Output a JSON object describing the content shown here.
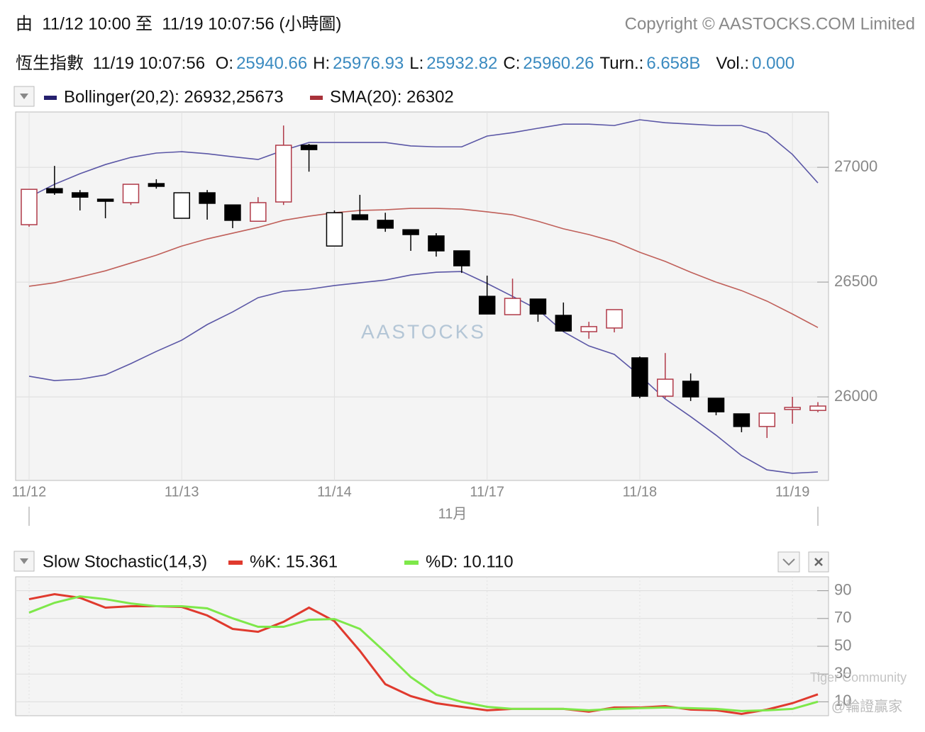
{
  "header": {
    "range": "由  11/12 10:00 至  11/19 10:07:56 (小時圖)",
    "copyright": "Copyright © AASTOCKS.COM Limited"
  },
  "quote": {
    "name": "恆生指數",
    "time": "11/19 10:07:56",
    "fields": [
      {
        "label": "O:",
        "value": "25940.66"
      },
      {
        "label": "H:",
        "value": "25976.93"
      },
      {
        "label": "L:",
        "value": "25932.82"
      },
      {
        "label": "C:",
        "value": "25960.26"
      },
      {
        "label": "Turn.:",
        "value": "6.658B"
      },
      {
        "label": "Vol.:",
        "value": "0.000"
      }
    ]
  },
  "watermarks": [
    "AASTOCKS",
    "Tiger Community",
    "@輪證贏家"
  ],
  "chart_data": [
    {
      "type": "candlestick",
      "legend": [
        {
          "label": "Bollinger(20,2): 26932,25673",
          "color": "#25206e"
        },
        {
          "label": "SMA(20): 26302",
          "color": "#a8323a"
        }
      ],
      "categories": [
        "11/12",
        null,
        null,
        null,
        null,
        null,
        "11/13",
        null,
        null,
        null,
        null,
        null,
        "11/14",
        null,
        null,
        null,
        null,
        null,
        "11/17",
        null,
        null,
        null,
        null,
        null,
        "11/18",
        null,
        null,
        null,
        null,
        null,
        "11/19",
        null
      ],
      "x_sublabel": "11月",
      "open": [
        26750,
        26907,
        26889,
        26861,
        26846,
        26929,
        26778,
        26889,
        26836,
        26765,
        26849,
        27096,
        26657,
        26793,
        26769,
        26728,
        26701,
        26636,
        26438,
        26358,
        26426,
        26355,
        26284,
        26300,
        26170,
        26003,
        26068,
        25994,
        25926,
        25871,
        25945,
        25941
      ],
      "high": [
        26904,
        27006,
        26901,
        26861,
        26926,
        26948,
        26889,
        26901,
        26836,
        26870,
        27182,
        27102,
        26812,
        26880,
        26802,
        26728,
        26713,
        26636,
        26528,
        26515,
        26426,
        26411,
        26327,
        26380,
        26176,
        26191,
        26102,
        25994,
        25926,
        25929,
        26000,
        25977
      ],
      "low": [
        26741,
        26880,
        26812,
        26778,
        26836,
        26907,
        26778,
        26772,
        26735,
        26765,
        26836,
        26981,
        26657,
        26772,
        26719,
        26636,
        26611,
        26540,
        26361,
        26358,
        26327,
        26284,
        26253,
        26281,
        25994,
        25994,
        25982,
        25920,
        25846,
        25821,
        25883,
        25933
      ],
      "close": [
        26904,
        26889,
        26870,
        26852,
        26926,
        26917,
        26889,
        26843,
        26769,
        26846,
        27096,
        27077,
        26802,
        26772,
        26735,
        26707,
        26636,
        26571,
        26361,
        26429,
        26361,
        26287,
        26306,
        26380,
        26003,
        26077,
        26000,
        25935,
        25871,
        25929,
        25954,
        25960
      ],
      "colors": [
        "#b03a48",
        "#000000",
        "#000000",
        "#000000",
        "#b03a48",
        "#000000",
        "#000000",
        "#000000",
        "#000000",
        "#b03a48",
        "#b03a48",
        "#000000",
        "#000000",
        "#000000",
        "#000000",
        "#000000",
        "#000000",
        "#000000",
        "#000000",
        "#b03a48",
        "#000000",
        "#000000",
        "#b03a48",
        "#b03a48",
        "#000000",
        "#b03a48",
        "#000000",
        "#000000",
        "#000000",
        "#b03a48",
        "#b03a48",
        "#b03a48"
      ],
      "lines": [
        {
          "color": "#5b57a6",
          "values": [
            26870,
            26926,
            26972,
            27012,
            27043,
            27062,
            27068,
            27059,
            27046,
            27034,
            27074,
            27108,
            27108,
            27108,
            27108,
            27093,
            27089,
            27089,
            27136,
            27151,
            27170,
            27188,
            27188,
            27182,
            27207,
            27194,
            27188,
            27182,
            27182,
            27148,
            27056,
            26932
          ]
        },
        {
          "color": "#5b57a6",
          "values": [
            26090,
            26071,
            26077,
            26096,
            26145,
            26198,
            26247,
            26315,
            26370,
            26432,
            26460,
            26469,
            26485,
            26497,
            26509,
            26531,
            26543,
            26546,
            26494,
            26438,
            26380,
            26284,
            26222,
            26185,
            26093,
            25991,
            25914,
            25833,
            25744,
            25682,
            25667,
            25673
          ]
        },
        {
          "color": "#c0605a",
          "values": [
            26482,
            26497,
            26522,
            26549,
            26583,
            26617,
            26657,
            26688,
            26713,
            26738,
            26769,
            26787,
            26802,
            26812,
            26815,
            26821,
            26821,
            26818,
            26806,
            26793,
            26765,
            26732,
            26707,
            26676,
            26630,
            26590,
            26543,
            26500,
            26463,
            26417,
            26361,
            26302
          ]
        }
      ],
      "ylim": [
        25636,
        27241
      ],
      "yticks": [
        26000,
        26500,
        27000
      ],
      "grid": true
    },
    {
      "type": "line",
      "title": "Slow Stochastic(14,3)",
      "series": [
        {
          "name": "%K: 15.361",
          "color": "#e03a2e",
          "values": [
            83.9,
            87.5,
            84.9,
            77.8,
            78.8,
            78.8,
            78.3,
            72.2,
            62.5,
            60.4,
            67.6,
            77.8,
            68.1,
            46.7,
            22.7,
            14.1,
            9.0,
            6.4,
            3.9,
            4.9,
            4.9,
            4.9,
            2.9,
            5.9,
            5.9,
            6.9,
            4.4,
            3.9,
            1.3,
            4.4,
            9.0,
            15.4
          ]
        },
        {
          "name": "%D: 10.110",
          "color": "#7ee84a",
          "values": [
            74.2,
            81.3,
            85.9,
            83.9,
            80.8,
            78.8,
            78.8,
            77.3,
            70.1,
            64.0,
            64.0,
            69.1,
            69.6,
            62.5,
            45.7,
            27.8,
            15.1,
            10.0,
            6.4,
            4.9,
            4.9,
            4.9,
            3.9,
            4.9,
            5.4,
            5.9,
            5.4,
            4.9,
            3.4,
            3.9,
            4.9,
            10.1
          ]
        }
      ],
      "ylim": [
        0,
        100
      ],
      "yticks": [
        10,
        30,
        50,
        70,
        90
      ],
      "grid": true
    }
  ]
}
